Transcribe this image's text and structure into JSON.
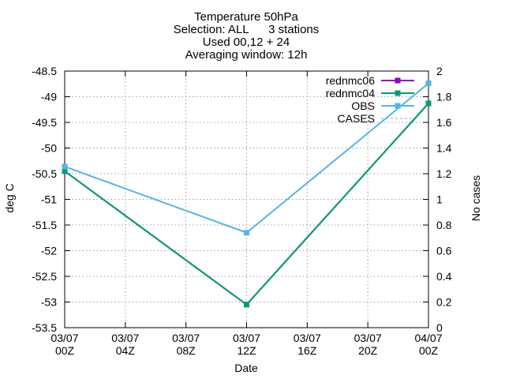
{
  "chart_data": {
    "type": "line",
    "title": [
      "Temperature 50hPa",
      "Selection: ALL      3 stations",
      "Used 00,12 + 24",
      "Averaging window: 12h"
    ],
    "xlabel": "Date",
    "ylabel": "deg C",
    "y2label": "No cases",
    "x": [
      "03/07 00Z",
      "03/07 04Z",
      "03/07 08Z",
      "03/07 12Z",
      "03/07 16Z",
      "03/07 20Z",
      "04/07 00Z"
    ],
    "x_ticks": [
      {
        "line1": "03/07",
        "line2": "00Z"
      },
      {
        "line1": "03/07",
        "line2": "04Z"
      },
      {
        "line1": "03/07",
        "line2": "08Z"
      },
      {
        "line1": "03/07",
        "line2": "12Z"
      },
      {
        "line1": "03/07",
        "line2": "16Z"
      },
      {
        "line1": "03/07",
        "line2": "20Z"
      },
      {
        "line1": "04/07",
        "line2": "00Z"
      }
    ],
    "xlim_hours": [
      0,
      24
    ],
    "ylim": [
      -53.5,
      -48.5
    ],
    "y_ticks": [
      "-48.5",
      "-49",
      "-49.5",
      "-50",
      "-50.5",
      "-51",
      "-51.5",
      "-52",
      "-52.5",
      "-53",
      "-53.5"
    ],
    "y2lim": [
      0,
      2
    ],
    "y2_ticks": [
      "2",
      "1.8",
      "1.6",
      "1.4",
      "1.2",
      "1",
      "0.8",
      "0.6",
      "0.4",
      "0.2",
      "0"
    ],
    "grid": true,
    "legend_position": "top-right",
    "series": [
      {
        "name": "rednmc06",
        "color": "#9400d3",
        "marker": "square",
        "dash": false,
        "points": [
          {
            "x": "03/07 00Z",
            "y": -50.45
          },
          {
            "x": "03/07 12Z",
            "y": -53.05
          },
          {
            "x": "04/07 00Z",
            "y": -49.13
          }
        ]
      },
      {
        "name": "rednmc04",
        "color": "#009e73",
        "marker": "square",
        "dash": false,
        "points": [
          {
            "x": "03/07 00Z",
            "y": -50.45
          },
          {
            "x": "03/07 12Z",
            "y": -53.05
          },
          {
            "x": "04/07 00Z",
            "y": -49.13
          }
        ]
      },
      {
        "name": "OBS",
        "color": "#56b4e9",
        "marker": "square",
        "dash": false,
        "points": [
          {
            "x": "03/07 00Z",
            "y": -50.36
          },
          {
            "x": "03/07 12Z",
            "y": -51.65
          },
          {
            "x": "04/07 00Z",
            "y": -48.74
          }
        ]
      },
      {
        "name": "CASES",
        "color": "#a0a0a0",
        "marker": "none",
        "dash": true,
        "points": []
      }
    ]
  }
}
